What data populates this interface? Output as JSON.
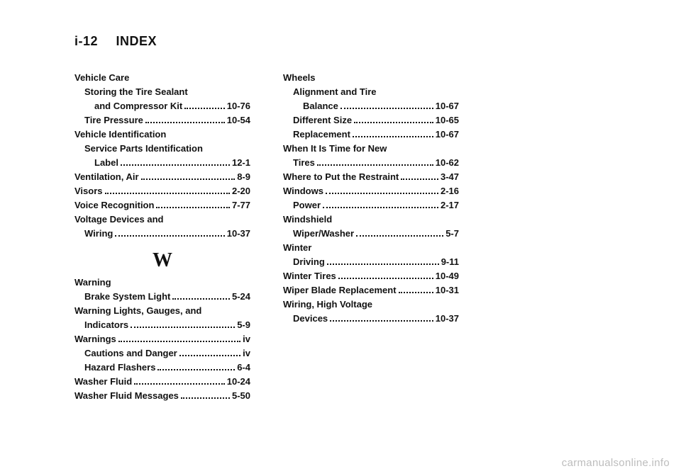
{
  "header": {
    "pagenum": "i-12",
    "title": "INDEX"
  },
  "watermark": "carmanualsonline.info",
  "section_letter": "W",
  "col1": [
    {
      "label": "Vehicle Care",
      "indent": 0,
      "page": "",
      "nodots": true
    },
    {
      "label": "Storing the Tire Sealant",
      "indent": 1,
      "page": "",
      "nodots": true
    },
    {
      "label": "and Compressor Kit",
      "indent": 2,
      "page": "10-76"
    },
    {
      "label": "Tire Pressure",
      "indent": 1,
      "page": "10-54"
    },
    {
      "label": "Vehicle Identification",
      "indent": 0,
      "page": "",
      "nodots": true
    },
    {
      "label": "Service Parts Identification",
      "indent": 1,
      "page": "",
      "nodots": true
    },
    {
      "label": "Label",
      "indent": 2,
      "page": "12-1"
    },
    {
      "label": "Ventilation, Air",
      "indent": 0,
      "page": "8-9"
    },
    {
      "label": "Visors",
      "indent": 0,
      "page": "2-20"
    },
    {
      "label": "Voice Recognition",
      "indent": 0,
      "page": "7-77"
    },
    {
      "label": "Voltage Devices and",
      "indent": 0,
      "page": "",
      "nodots": true
    },
    {
      "label": "Wiring",
      "indent": 1,
      "page": "10-37"
    }
  ],
  "col1b": [
    {
      "label": "Warning",
      "indent": 0,
      "page": "",
      "nodots": true
    },
    {
      "label": "Brake System Light",
      "indent": 1,
      "page": "5-24"
    },
    {
      "label": "Warning Lights, Gauges, and",
      "indent": 0,
      "page": "",
      "nodots": true
    },
    {
      "label": "Indicators",
      "indent": 1,
      "page": "5-9"
    },
    {
      "label": "Warnings",
      "indent": 0,
      "page": "iv"
    },
    {
      "label": "Cautions and Danger",
      "indent": 1,
      "page": "iv"
    },
    {
      "label": "Hazard Flashers",
      "indent": 1,
      "page": "6-4"
    },
    {
      "label": "Washer Fluid",
      "indent": 0,
      "page": "10-24"
    },
    {
      "label": "Washer Fluid Messages",
      "indent": 0,
      "page": "5-50"
    }
  ],
  "col2": [
    {
      "label": "Wheels",
      "indent": 0,
      "page": "",
      "nodots": true
    },
    {
      "label": "Alignment and Tire",
      "indent": 1,
      "page": "",
      "nodots": true
    },
    {
      "label": "Balance",
      "indent": 2,
      "page": "10-67"
    },
    {
      "label": "Different Size",
      "indent": 1,
      "page": "10-65"
    },
    {
      "label": "Replacement",
      "indent": 1,
      "page": "10-67"
    },
    {
      "label": "When It Is Time for New",
      "indent": 0,
      "page": "",
      "nodots": true
    },
    {
      "label": "Tires",
      "indent": 1,
      "page": "10-62"
    },
    {
      "label": "Where to Put the Restraint",
      "indent": 0,
      "page": "3-47"
    },
    {
      "label": "Windows",
      "indent": 0,
      "page": "2-16"
    },
    {
      "label": "Power",
      "indent": 1,
      "page": "2-17"
    },
    {
      "label": "Windshield",
      "indent": 0,
      "page": "",
      "nodots": true
    },
    {
      "label": "Wiper/Washer",
      "indent": 1,
      "page": "5-7"
    },
    {
      "label": "Winter",
      "indent": 0,
      "page": "",
      "nodots": true
    },
    {
      "label": "Driving",
      "indent": 1,
      "page": "9-11"
    },
    {
      "label": "Winter Tires",
      "indent": 0,
      "page": "10-49"
    },
    {
      "label": "Wiper Blade Replacement",
      "indent": 0,
      "page": "10-31"
    },
    {
      "label": "Wiring, High Voltage",
      "indent": 0,
      "page": "",
      "nodots": true
    },
    {
      "label": "Devices",
      "indent": 1,
      "page": "10-37"
    }
  ]
}
